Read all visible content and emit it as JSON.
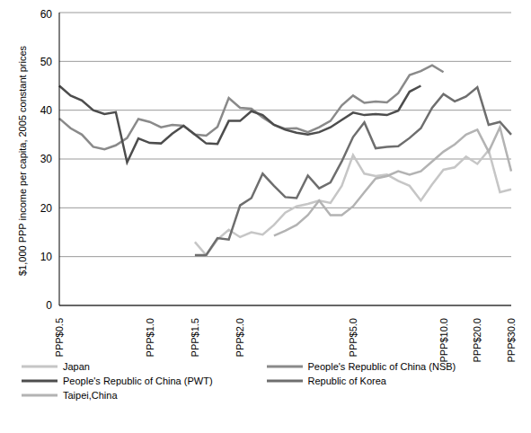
{
  "chart_data": {
    "type": "line",
    "y_label": "$1,000 PPP income per capita, 2005 constant prices",
    "categories": [
      "PPP$0.5",
      null,
      null,
      null,
      null,
      null,
      null,
      null,
      "PPP$1.0",
      null,
      null,
      null,
      "PPP$1.5",
      null,
      null,
      null,
      "PPP$2.0",
      null,
      null,
      null,
      null,
      null,
      null,
      null,
      null,
      null,
      "PPP$5.0",
      null,
      null,
      null,
      null,
      null,
      null,
      null,
      "PPP$10.0",
      null,
      null,
      "PPP$20.0",
      null,
      null,
      "PPP$30.0"
    ],
    "series": [
      {
        "name": "People's Republic of China (NSB)",
        "color": "#8a8a8a",
        "values": [
          38.3,
          36.3,
          35,
          32.5,
          32,
          32.8,
          34.3,
          38.2,
          37.6,
          36.5,
          37,
          36.8,
          35,
          34.8,
          36.6,
          42.5,
          40.5,
          40.3,
          38.5,
          37,
          36.2,
          36.3,
          35.5,
          36.5,
          37.8,
          41,
          43,
          41.5,
          41.8,
          41.6,
          43.5,
          47.2,
          48,
          49.2,
          47.8,
          null,
          null,
          null,
          null,
          null,
          null
        ]
      },
      {
        "name": "People's Republic of China (PWT)",
        "color": "#4d4d4d",
        "values": [
          45,
          43,
          42,
          40,
          39.2,
          39.6,
          29.3,
          34.2,
          33.3,
          33.2,
          35.2,
          36.8,
          35,
          33.2,
          33.1,
          37.8,
          37.8,
          39.8,
          39,
          37,
          36,
          35.4,
          35,
          35.5,
          36.5,
          38,
          39.5,
          39,
          39.2,
          39,
          39.9,
          43.8,
          45,
          null,
          null,
          null,
          null,
          null,
          null,
          null,
          null
        ]
      },
      {
        "name": "Japan",
        "color": "#c6c6c6",
        "values": [
          null,
          null,
          null,
          null,
          null,
          null,
          null,
          null,
          null,
          null,
          null,
          null,
          13,
          10.3,
          13.5,
          15.5,
          14,
          15,
          14.5,
          16.5,
          19,
          20.3,
          20.8,
          21.5,
          21,
          24.5,
          30.8,
          27,
          26.5,
          26.8,
          25.5,
          24.5,
          21.5,
          24.8,
          27.8,
          28.3,
          30.5,
          29,
          31.8,
          23.2,
          23.8
        ]
      },
      {
        "name": "Republic of Korea",
        "color": "#6e6e6e",
        "values": [
          null,
          null,
          null,
          null,
          null,
          null,
          null,
          null,
          null,
          null,
          null,
          null,
          10.3,
          10.3,
          13.8,
          13.5,
          20.5,
          22,
          27,
          24.5,
          22.2,
          22,
          26.6,
          24,
          25.2,
          29.5,
          34.5,
          37.5,
          32.2,
          32.5,
          32.6,
          34.3,
          36.3,
          40.5,
          43.3,
          41.8,
          42.8,
          44.7,
          37,
          37.6,
          35
        ]
      },
      {
        "name": "Taipei,China",
        "color": "#b3b3b3",
        "values": [
          null,
          null,
          null,
          null,
          null,
          null,
          null,
          null,
          null,
          null,
          null,
          null,
          null,
          null,
          null,
          null,
          null,
          null,
          null,
          14.3,
          15.3,
          16.5,
          18.5,
          21.5,
          18.5,
          18.5,
          20.3,
          23.2,
          26,
          26.5,
          27.5,
          26.8,
          27.5,
          29.5,
          31.5,
          33,
          35,
          36,
          31.5,
          36.5,
          27.5
        ]
      }
    ],
    "ylim": [
      0,
      60
    ],
    "yticks": [
      0,
      10,
      20,
      30,
      40,
      50,
      60
    ],
    "grid": true,
    "legend": "bottom"
  }
}
